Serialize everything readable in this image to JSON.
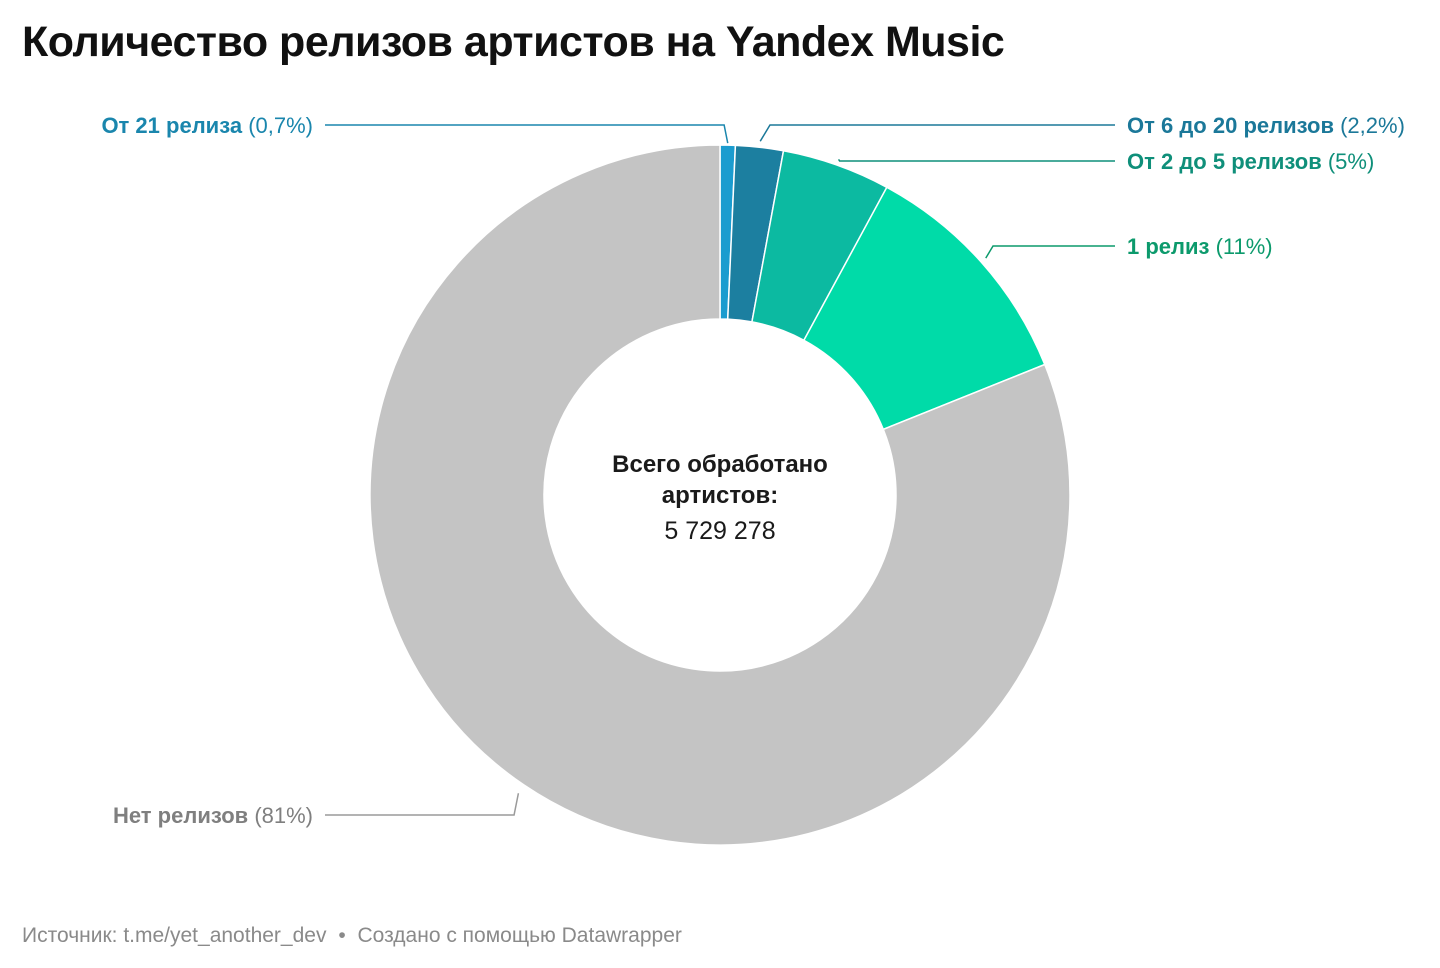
{
  "title": "Количество релизов артистов на Yandex Music",
  "center": {
    "line1": "Всего обработано",
    "line2": "артистов:",
    "value": "5 729 278"
  },
  "footer": {
    "source_label": "Источник:",
    "source_value": "t.me/yet_another_dev",
    "separator": "•",
    "credit": "Создано с помощью Datawrapper"
  },
  "chart_data": {
    "type": "pie",
    "variant": "donut",
    "total": 5729278,
    "slices": [
      {
        "label": "От 21 релиза",
        "value": 0.7,
        "display": "(0,7%)",
        "color": "#1a9ccf",
        "label_color": "#1a86ad"
      },
      {
        "label": "От 6 до 20 релизов",
        "value": 2.2,
        "display": "(2,2%)",
        "color": "#1c7fa0",
        "label_color": "#1b7899"
      },
      {
        "label": "От 2 до 5 релизов",
        "value": 5,
        "display": "(5%)",
        "color": "#0cbaa1",
        "label_color": "#0f8f7a"
      },
      {
        "label": "1 релиз",
        "value": 11,
        "display": "(11%)",
        "color": "#00dba8",
        "label_color": "#0c9a6c"
      },
      {
        "label": "Нет релизов",
        "value": 81,
        "display": "(81%)",
        "color": "#c4c4c4",
        "label_color": "#7f7f7f"
      }
    ]
  }
}
